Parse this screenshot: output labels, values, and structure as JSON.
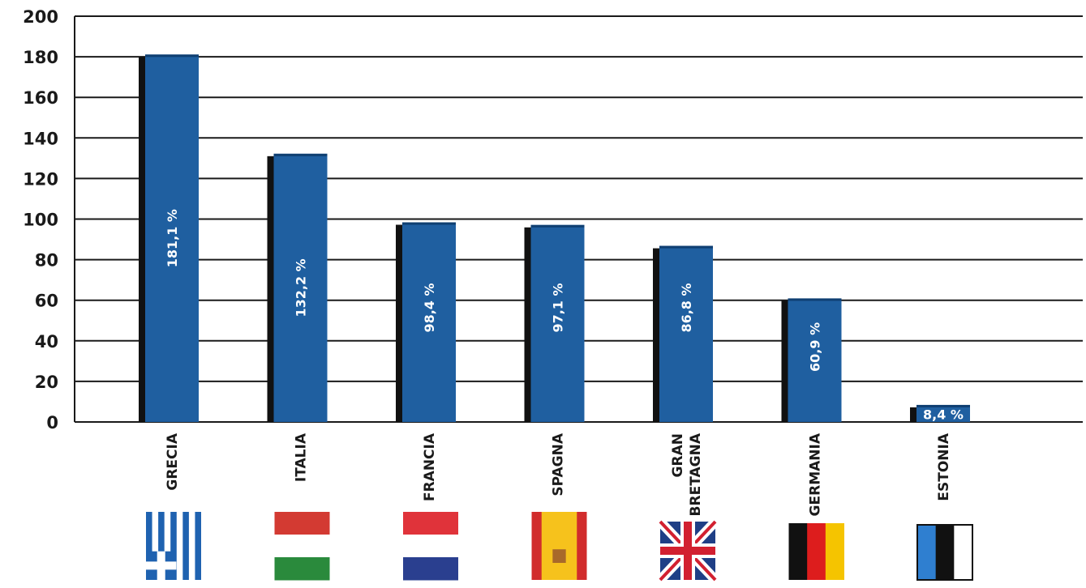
{
  "chart_data": {
    "type": "bar",
    "title": "",
    "xlabel": "",
    "ylabel": "",
    "ylim": [
      0,
      200
    ],
    "yticks": [
      0,
      20,
      40,
      60,
      80,
      100,
      120,
      140,
      160,
      180,
      200
    ],
    "grid": true,
    "bar_color": "#1f5fa0",
    "categories": [
      "GRECIA",
      "ITALIA",
      "FRANCIA",
      "SPAGNA",
      "GRAN BRETAGNA",
      "GERMANIA",
      "ESTONIA"
    ],
    "category_lines": [
      [
        "GRECIA"
      ],
      [
        "ITALIA"
      ],
      [
        "FRANCIA"
      ],
      [
        "SPAGNA"
      ],
      [
        "GRAN",
        "BRETAGNA"
      ],
      [
        "GERMANIA"
      ],
      [
        "ESTONIA"
      ]
    ],
    "values": [
      181.1,
      132.2,
      98.4,
      97.1,
      86.8,
      60.9,
      8.4
    ],
    "data_labels": [
      "181,1 %",
      "132,2 %",
      "98,4 %",
      "97,1 %",
      "86,8 %",
      "60,9 %",
      "8,4 %"
    ],
    "flags": [
      {
        "country": "GRECIA",
        "icon": "greece-flag-icon",
        "colors": [
          "#1f62b0",
          "#ffffff"
        ]
      },
      {
        "country": "ITALIA",
        "icon": "hungary-tricolor-flag-icon",
        "colors": [
          "#d33a32",
          "#ffffff",
          "#2a8a3c"
        ]
      },
      {
        "country": "FRANCIA",
        "icon": "netherlands-tricolor-flag-icon",
        "colors": [
          "#e0333a",
          "#ffffff",
          "#2a3f8f"
        ]
      },
      {
        "country": "SPAGNA",
        "icon": "spain-flag-icon",
        "colors": [
          "#d12c2c",
          "#f6c21c"
        ]
      },
      {
        "country": "GRAN BRETAGNA",
        "icon": "union-jack-flag-icon",
        "colors": [
          "#1f3f86",
          "#ffffff",
          "#d22030"
        ]
      },
      {
        "country": "GERMANIA",
        "icon": "germany-flag-icon",
        "colors": [
          "#111111",
          "#dd1d1d",
          "#f5c400"
        ]
      },
      {
        "country": "ESTONIA",
        "icon": "estonia-flag-icon",
        "colors": [
          "#2f7fd0",
          "#111111",
          "#ffffff"
        ]
      }
    ]
  }
}
